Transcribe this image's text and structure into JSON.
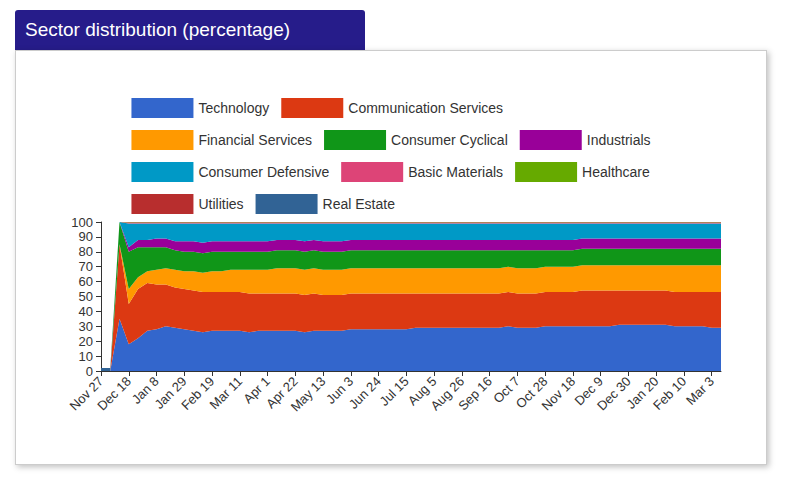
{
  "chart_data": {
    "type": "area",
    "title": "Sector distribution (percentage)",
    "stacked": true,
    "legend": "top",
    "grid": false,
    "categories": [
      "Nov 27",
      null,
      null,
      "Dec 18",
      null,
      null,
      "Jan 8",
      null,
      null,
      "Jan 29",
      null,
      null,
      "Feb 19",
      null,
      null,
      "Mar 11",
      null,
      null,
      "Apr 1",
      null,
      null,
      "Apr 22",
      null,
      null,
      "May 13",
      null,
      null,
      "Jun 3",
      null,
      null,
      "Jun 24",
      null,
      null,
      "Jul 15",
      null,
      null,
      "Aug 5",
      null,
      null,
      "Aug 26",
      null,
      null,
      "Sep 16",
      null,
      null,
      "Oct 7",
      null,
      null,
      "Oct 28",
      null,
      null,
      "Nov 18",
      null,
      null,
      "Dec 9",
      null,
      null,
      "Dec 30",
      null,
      null,
      "Jan 20",
      null,
      null,
      "Feb 10",
      null,
      null,
      "Mar 3",
      null
    ],
    "ylim": [
      0,
      100
    ],
    "yticks": [
      0,
      10,
      20,
      30,
      40,
      50,
      60,
      70,
      80,
      90,
      100
    ],
    "series": [
      {
        "name": "Technology",
        "color": "#3366cc",
        "values": [
          0,
          0,
          35,
          18,
          22,
          27,
          28,
          30,
          29,
          28,
          27,
          26,
          27,
          27,
          27,
          27,
          26,
          27,
          27,
          27,
          27,
          27,
          26,
          27,
          27,
          27,
          27,
          28,
          28,
          28,
          28,
          28,
          28,
          28,
          29,
          29,
          29,
          29,
          29,
          29,
          29,
          29,
          29,
          29,
          30,
          29,
          29,
          29,
          30,
          30,
          30,
          30,
          30,
          30,
          30,
          30,
          31,
          31,
          31,
          31,
          31,
          31,
          30,
          30,
          30,
          30,
          29,
          29
        ]
      },
      {
        "name": "Communication Services",
        "color": "#dc3912",
        "values": [
          0,
          0,
          50,
          27,
          33,
          32,
          30,
          28,
          27,
          27,
          27,
          27,
          26,
          26,
          26,
          26,
          26,
          25,
          25,
          25,
          25,
          25,
          25,
          25,
          24,
          24,
          24,
          24,
          24,
          24,
          24,
          24,
          24,
          24,
          23,
          23,
          23,
          23,
          23,
          23,
          23,
          23,
          23,
          23,
          23,
          23,
          23,
          23,
          23,
          23,
          23,
          23,
          24,
          24,
          24,
          24,
          23,
          23,
          23,
          23,
          23,
          23,
          23,
          23,
          23,
          23,
          24,
          24
        ]
      },
      {
        "name": "Financial Services",
        "color": "#ff9900",
        "values": [
          0,
          0,
          0,
          10,
          8,
          8,
          10,
          11,
          12,
          12,
          13,
          13,
          14,
          14,
          15,
          15,
          16,
          16,
          16,
          17,
          17,
          17,
          17,
          17,
          17,
          17,
          17,
          17,
          17,
          17,
          17,
          17,
          17,
          17,
          17,
          17,
          17,
          17,
          17,
          17,
          17,
          17,
          17,
          17,
          17,
          17,
          17,
          17,
          17,
          17,
          17,
          17,
          17,
          17,
          17,
          17,
          17,
          17,
          17,
          17,
          17,
          17,
          18,
          18,
          18,
          18,
          18,
          18
        ]
      },
      {
        "name": "Consumer Cyclical",
        "color": "#109618",
        "values": [
          0,
          0,
          15,
          25,
          20,
          16,
          15,
          14,
          13,
          13,
          13,
          13,
          13,
          13,
          12,
          12,
          12,
          12,
          12,
          12,
          12,
          12,
          12,
          12,
          12,
          12,
          12,
          12,
          12,
          12,
          12,
          12,
          12,
          12,
          12,
          12,
          12,
          12,
          12,
          12,
          12,
          12,
          12,
          12,
          11,
          12,
          12,
          12,
          11,
          11,
          11,
          11,
          11,
          11,
          11,
          11,
          11,
          11,
          11,
          11,
          11,
          11,
          11,
          11,
          11,
          11,
          11,
          11
        ]
      },
      {
        "name": "Industrials",
        "color": "#990099",
        "values": [
          0,
          0,
          0,
          3,
          5,
          5,
          6,
          6,
          6,
          7,
          7,
          7,
          7,
          7,
          7,
          7,
          7,
          7,
          7,
          7,
          7,
          7,
          7,
          7,
          7,
          7,
          7,
          7,
          7,
          7,
          7,
          7,
          7,
          7,
          7,
          7,
          7,
          7,
          7,
          7,
          7,
          7,
          7,
          7,
          7,
          7,
          7,
          7,
          7,
          7,
          7,
          7,
          7,
          7,
          7,
          7,
          7,
          7,
          7,
          7,
          7,
          7,
          7,
          7,
          7,
          7,
          7,
          7
        ]
      },
      {
        "name": "Consumer Defensive",
        "color": "#0099c6",
        "values": [
          0,
          0,
          0,
          16,
          11,
          11,
          10,
          10,
          12,
          12,
          12,
          13,
          12,
          12,
          12,
          12,
          12,
          12,
          12,
          11,
          11,
          11,
          12,
          11,
          12,
          12,
          12,
          11,
          11,
          11,
          11,
          11,
          11,
          11,
          11,
          11,
          11,
          11,
          11,
          11,
          11,
          11,
          11,
          11,
          11,
          11,
          11,
          11,
          11,
          11,
          11,
          11,
          10,
          10,
          10,
          10,
          10,
          10,
          10,
          10,
          10,
          10,
          10,
          10,
          10,
          10,
          10,
          10
        ]
      },
      {
        "name": "Basic Materials",
        "color": "#dd4477",
        "values": [
          0,
          0,
          0,
          0.3,
          0.3,
          0.3,
          0.3,
          0.3,
          0.3,
          0.3,
          0.3,
          0.3,
          0.3,
          0.3,
          0.3,
          0.3,
          0.3,
          0.3,
          0.3,
          0.3,
          0.3,
          0.3,
          0.3,
          0.3,
          0.3,
          0.3,
          0.3,
          0.3,
          0.3,
          0.3,
          0.3,
          0.3,
          0.3,
          0.3,
          0.3,
          0.3,
          0.3,
          0.3,
          0.3,
          0.3,
          0.3,
          0.3,
          0.3,
          0.3,
          0.3,
          0.3,
          0.3,
          0.3,
          0.3,
          0.3,
          0.3,
          0.3,
          0.3,
          0.3,
          0.3,
          0.3,
          0.3,
          0.3,
          0.3,
          0.3,
          0.3,
          0.3,
          0.3,
          0.3,
          0.3,
          0.3,
          0.3,
          0.3
        ]
      },
      {
        "name": "Healthcare",
        "color": "#66aa00",
        "values": [
          0,
          0,
          0,
          0.4,
          0.4,
          0.4,
          0.4,
          0.4,
          0.4,
          0.4,
          0.4,
          0.4,
          0.4,
          0.4,
          0.4,
          0.4,
          0.4,
          0.4,
          0.4,
          0.4,
          0.4,
          0.4,
          0.4,
          0.4,
          0.4,
          0.4,
          0.4,
          0.4,
          0.4,
          0.4,
          0.4,
          0.4,
          0.4,
          0.4,
          0.4,
          0.4,
          0.4,
          0.4,
          0.4,
          0.4,
          0.4,
          0.4,
          0.4,
          0.4,
          0.4,
          0.4,
          0.4,
          0.4,
          0.4,
          0.4,
          0.4,
          0.4,
          0.4,
          0.4,
          0.4,
          0.4,
          0.4,
          0.4,
          0.4,
          0.4,
          0.4,
          0.4,
          0.4,
          0.4,
          0.4,
          0.4,
          0.4,
          0.4
        ]
      },
      {
        "name": "Utilities",
        "color": "#b82e2e",
        "values": [
          0,
          0,
          0,
          0.3,
          0.3,
          0.3,
          0.3,
          0.3,
          0.3,
          0.3,
          0.3,
          0.3,
          0.3,
          0.3,
          0.3,
          0.3,
          0.3,
          0.3,
          0.3,
          0.3,
          0.3,
          0.3,
          0.3,
          0.3,
          0.3,
          0.3,
          0.3,
          0.3,
          0.3,
          0.3,
          0.3,
          0.3,
          0.3,
          0.3,
          0.3,
          0.3,
          0.3,
          0.3,
          0.3,
          0.3,
          0.3,
          0.3,
          0.3,
          0.3,
          0.3,
          0.3,
          0.3,
          0.3,
          0.3,
          0.3,
          0.3,
          0.3,
          0.3,
          0.3,
          0.3,
          0.3,
          0.3,
          0.3,
          0.3,
          0.3,
          0.3,
          0.3,
          0.3,
          0.3,
          0.3,
          0.3,
          0.3,
          0.3
        ]
      },
      {
        "name": "Real Estate",
        "color": "#316395",
        "values": [
          2,
          2,
          0,
          0,
          0,
          0,
          0,
          0,
          0,
          0,
          0,
          0,
          0,
          0,
          0,
          0,
          0,
          0,
          0,
          0,
          0,
          0,
          0,
          0,
          0,
          0,
          0,
          0,
          0,
          0,
          0,
          0,
          0,
          0,
          0,
          0,
          0,
          0,
          0,
          0,
          0,
          0,
          0,
          0,
          0,
          0,
          0,
          0,
          0,
          0,
          0,
          0,
          0,
          0,
          0,
          0,
          0,
          0,
          0,
          0,
          0,
          0,
          0,
          0,
          0,
          0,
          0,
          0
        ]
      }
    ]
  }
}
